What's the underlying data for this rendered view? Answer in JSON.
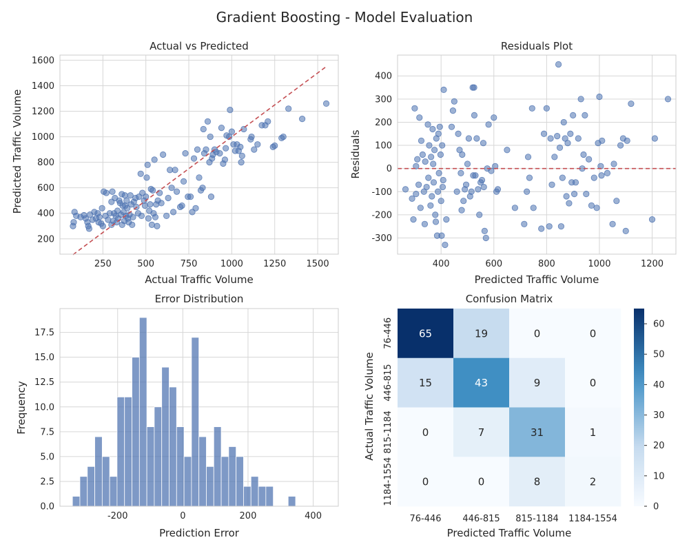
{
  "suptitle": "Gradient Boosting - Model Evaluation",
  "colors": {
    "point": "#4c72b0",
    "ref_line": "#c44e52",
    "bar": "#4c72b0",
    "heat_low": "#f7fbff",
    "heat_high": "#08306b"
  },
  "chart_data": [
    {
      "type": "scatter",
      "title": "Actual vs Predicted",
      "xlabel": "Actual Traffic Volume",
      "ylabel": "Predicted Traffic Volume",
      "xlim": [
        0,
        1620
      ],
      "ylim": [
        80,
        1640
      ],
      "xticks": [
        250,
        500,
        750,
        1000,
        1250,
        1500
      ],
      "yticks": [
        200,
        400,
        600,
        800,
        1000,
        1200,
        1400,
        1600
      ],
      "grid": true,
      "reference_line": {
        "style": "dashed",
        "from": [
          76,
          76
        ],
        "to": [
          1554,
          1554
        ]
      },
      "points": [
        [
          76,
          300
        ],
        [
          80,
          330
        ],
        [
          85,
          410
        ],
        [
          95,
          380
        ],
        [
          120,
          370
        ],
        [
          140,
          385
        ],
        [
          150,
          360
        ],
        [
          160,
          330
        ],
        [
          165,
          300
        ],
        [
          170,
          280
        ],
        [
          175,
          390
        ],
        [
          190,
          350
        ],
        [
          200,
          410
        ],
        [
          210,
          360
        ],
        [
          220,
          400
        ],
        [
          225,
          330
        ],
        [
          230,
          370
        ],
        [
          240,
          320
        ],
        [
          245,
          440
        ],
        [
          250,
          300
        ],
        [
          255,
          570
        ],
        [
          265,
          380
        ],
        [
          270,
          560
        ],
        [
          280,
          350
        ],
        [
          290,
          400
        ],
        [
          300,
          310
        ],
        [
          300,
          490
        ],
        [
          305,
          570
        ],
        [
          310,
          340
        ],
        [
          315,
          400
        ],
        [
          320,
          520
        ],
        [
          325,
          380
        ],
        [
          330,
          330
        ],
        [
          335,
          420
        ],
        [
          340,
          360
        ],
        [
          345,
          500
        ],
        [
          350,
          480
        ],
        [
          355,
          390
        ],
        [
          360,
          550
        ],
        [
          362,
          310
        ],
        [
          365,
          460
        ],
        [
          370,
          410
        ],
        [
          375,
          340
        ],
        [
          378,
          540
        ],
        [
          380,
          460
        ],
        [
          385,
          380
        ],
        [
          388,
          500
        ],
        [
          392,
          440
        ],
        [
          395,
          360
        ],
        [
          400,
          330
        ],
        [
          405,
          390
        ],
        [
          410,
          540
        ],
        [
          415,
          470
        ],
        [
          420,
          310
        ],
        [
          425,
          370
        ],
        [
          430,
          490
        ],
        [
          440,
          520
        ],
        [
          445,
          450
        ],
        [
          455,
          400
        ],
        [
          460,
          530
        ],
        [
          470,
          710
        ],
        [
          475,
          380
        ],
        [
          480,
          560
        ],
        [
          490,
          500
        ],
        [
          495,
          460
        ],
        [
          500,
          530
        ],
        [
          505,
          680
        ],
        [
          510,
          780
        ],
        [
          515,
          360
        ],
        [
          520,
          420
        ],
        [
          525,
          470
        ],
        [
          530,
          590
        ],
        [
          535,
          310
        ],
        [
          540,
          580
        ],
        [
          545,
          400
        ],
        [
          550,
          820
        ],
        [
          555,
          370
        ],
        [
          560,
          470
        ],
        [
          565,
          300
        ],
        [
          570,
          500
        ],
        [
          580,
          560
        ],
        [
          590,
          480
        ],
        [
          600,
          860
        ],
        [
          620,
          380
        ],
        [
          630,
          520
        ],
        [
          640,
          740
        ],
        [
          650,
          600
        ],
        [
          660,
          410
        ],
        [
          670,
          740
        ],
        [
          680,
          570
        ],
        [
          700,
          450
        ],
        [
          710,
          460
        ],
        [
          720,
          650
        ],
        [
          730,
          870
        ],
        [
          745,
          530
        ],
        [
          760,
          530
        ],
        [
          770,
          410
        ],
        [
          780,
          830
        ],
        [
          790,
          440
        ],
        [
          800,
          900
        ],
        [
          810,
          680
        ],
        [
          820,
          580
        ],
        [
          830,
          600
        ],
        [
          835,
          1060
        ],
        [
          840,
          870
        ],
        [
          850,
          900
        ],
        [
          860,
          1120
        ],
        [
          870,
          800
        ],
        [
          875,
          1000
        ],
        [
          880,
          530
        ],
        [
          885,
          830
        ],
        [
          890,
          860
        ],
        [
          900,
          900
        ],
        [
          910,
          880
        ],
        [
          930,
          870
        ],
        [
          940,
          1070
        ],
        [
          950,
          790
        ],
        [
          960,
          820
        ],
        [
          965,
          910
        ],
        [
          970,
          1010
        ],
        [
          985,
          1000
        ],
        [
          990,
          1210
        ],
        [
          1000,
          1040
        ],
        [
          1010,
          940
        ],
        [
          1020,
          890
        ],
        [
          1030,
          940
        ],
        [
          1040,
          890
        ],
        [
          1050,
          920
        ],
        [
          1055,
          800
        ],
        [
          1060,
          850
        ],
        [
          1070,
          1060
        ],
        [
          1110,
          980
        ],
        [
          1115,
          1000
        ],
        [
          1130,
          900
        ],
        [
          1150,
          940
        ],
        [
          1175,
          1090
        ],
        [
          1195,
          1090
        ],
        [
          1210,
          1120
        ],
        [
          1240,
          920
        ],
        [
          1250,
          930
        ],
        [
          1290,
          990
        ],
        [
          1300,
          1000
        ],
        [
          1330,
          1220
        ],
        [
          1410,
          1140
        ],
        [
          1550,
          1260
        ]
      ]
    },
    {
      "type": "scatter",
      "title": "Residuals Plot",
      "xlabel": "Predicted Traffic Volume",
      "ylabel": "Residuals",
      "xlim": [
        235,
        1290
      ],
      "ylim": [
        -370,
        490
      ],
      "xticks": [
        400,
        600,
        800,
        1000,
        1200
      ],
      "yticks": [
        -300,
        -200,
        -100,
        0,
        100,
        200,
        300,
        400
      ],
      "grid": true,
      "reference_line": {
        "style": "dashed",
        "y": 0
      },
      "points": [
        [
          265,
          -90
        ],
        [
          290,
          -130
        ],
        [
          295,
          -220
        ],
        [
          300,
          260
        ],
        [
          305,
          10
        ],
        [
          305,
          -110
        ],
        [
          310,
          40
        ],
        [
          315,
          -70
        ],
        [
          318,
          220
        ],
        [
          322,
          -170
        ],
        [
          325,
          120
        ],
        [
          330,
          60
        ],
        [
          335,
          -100
        ],
        [
          338,
          -240
        ],
        [
          340,
          30
        ],
        [
          345,
          -80
        ],
        [
          350,
          190
        ],
        [
          352,
          -40
        ],
        [
          355,
          100
        ],
        [
          360,
          -160
        ],
        [
          362,
          50
        ],
        [
          365,
          -120
        ],
        [
          368,
          170
        ],
        [
          370,
          20
        ],
        [
          372,
          -60
        ],
        [
          375,
          80
        ],
        [
          378,
          -200
        ],
        [
          380,
          -230
        ],
        [
          382,
          130
        ],
        [
          385,
          -290
        ],
        [
          388,
          -100
        ],
        [
          390,
          150
        ],
        [
          392,
          -20
        ],
        [
          395,
          180
        ],
        [
          398,
          60
        ],
        [
          400,
          -140
        ],
        [
          402,
          -290
        ],
        [
          404,
          100
        ],
        [
          406,
          -80
        ],
        [
          408,
          -50
        ],
        [
          410,
          340
        ],
        [
          415,
          -330
        ],
        [
          420,
          -220
        ],
        [
          440,
          180
        ],
        [
          445,
          250
        ],
        [
          450,
          290
        ],
        [
          460,
          -100
        ],
        [
          465,
          150
        ],
        [
          470,
          80
        ],
        [
          475,
          -20
        ],
        [
          478,
          -180
        ],
        [
          480,
          60
        ],
        [
          485,
          -140
        ],
        [
          490,
          -90
        ],
        [
          495,
          -70
        ],
        [
          500,
          20
        ],
        [
          505,
          130
        ],
        [
          510,
          -120
        ],
        [
          515,
          -100
        ],
        [
          520,
          350
        ],
        [
          522,
          -30
        ],
        [
          525,
          350
        ],
        [
          526,
          230
        ],
        [
          530,
          -30
        ],
        [
          535,
          130
        ],
        [
          540,
          -90
        ],
        [
          545,
          -200
        ],
        [
          550,
          -60
        ],
        [
          555,
          -50
        ],
        [
          560,
          110
        ],
        [
          562,
          -80
        ],
        [
          565,
          -270
        ],
        [
          570,
          -300
        ],
        [
          575,
          0
        ],
        [
          580,
          190
        ],
        [
          590,
          -10
        ],
        [
          600,
          220
        ],
        [
          605,
          10
        ],
        [
          610,
          -100
        ],
        [
          615,
          -90
        ],
        [
          650,
          80
        ],
        [
          680,
          -170
        ],
        [
          715,
          -240
        ],
        [
          725,
          -100
        ],
        [
          730,
          50
        ],
        [
          735,
          -40
        ],
        [
          745,
          260
        ],
        [
          750,
          -170
        ],
        [
          780,
          -260
        ],
        [
          790,
          150
        ],
        [
          800,
          260
        ],
        [
          810,
          -250
        ],
        [
          815,
          130
        ],
        [
          820,
          -70
        ],
        [
          830,
          50
        ],
        [
          840,
          140
        ],
        [
          845,
          450
        ],
        [
          850,
          90
        ],
        [
          855,
          -250
        ],
        [
          860,
          -40
        ],
        [
          865,
          200
        ],
        [
          870,
          130
        ],
        [
          875,
          -120
        ],
        [
          880,
          110
        ],
        [
          885,
          -150
        ],
        [
          890,
          150
        ],
        [
          895,
          -60
        ],
        [
          900,
          230
        ],
        [
          905,
          -110
        ],
        [
          910,
          -60
        ],
        [
          920,
          130
        ],
        [
          930,
          300
        ],
        [
          935,
          0
        ],
        [
          940,
          60
        ],
        [
          945,
          230
        ],
        [
          950,
          -110
        ],
        [
          960,
          40
        ],
        [
          970,
          -160
        ],
        [
          980,
          -40
        ],
        [
          990,
          -170
        ],
        [
          995,
          110
        ],
        [
          1000,
          310
        ],
        [
          1005,
          10
        ],
        [
          1008,
          -30
        ],
        [
          1010,
          120
        ],
        [
          1030,
          -20
        ],
        [
          1050,
          -240
        ],
        [
          1055,
          20
        ],
        [
          1065,
          -140
        ],
        [
          1080,
          100
        ],
        [
          1090,
          130
        ],
        [
          1100,
          -270
        ],
        [
          1105,
          120
        ],
        [
          1120,
          280
        ],
        [
          1200,
          -220
        ],
        [
          1210,
          130
        ],
        [
          1260,
          300
        ]
      ]
    },
    {
      "type": "bar",
      "subtype": "histogram",
      "title": "Error Distribution",
      "xlabel": "Prediction Error",
      "ylabel": "Frequency",
      "xlim": [
        -377,
        477
      ],
      "ylim": [
        0,
        19.9
      ],
      "xticks": [
        -200,
        0,
        200,
        400
      ],
      "yticks": [
        0.0,
        2.5,
        5.0,
        7.5,
        10.0,
        12.5,
        15.0,
        17.5
      ],
      "grid": true,
      "bin_start": -338.6,
      "bin_width": 22.82,
      "values": [
        1,
        3,
        4,
        7,
        5,
        3,
        11,
        11,
        15,
        19,
        8,
        10,
        14,
        12,
        8,
        5,
        17,
        7,
        4,
        8,
        5,
        6,
        5,
        2,
        3,
        2,
        2,
        0,
        0,
        1
      ]
    },
    {
      "type": "heatmap",
      "title": "Confusion Matrix",
      "xlabel": "Predicted Traffic Volume",
      "ylabel": "Actual Traffic Volume",
      "row_labels": [
        "76-446",
        "446-815",
        "815-1184",
        "1184-1554"
      ],
      "col_labels": [
        "76-446",
        "446-815",
        "815-1184",
        "1184-1554"
      ],
      "values": [
        [
          65,
          19,
          0,
          0
        ],
        [
          15,
          43,
          9,
          0
        ],
        [
          0,
          7,
          31,
          1
        ],
        [
          0,
          0,
          8,
          2
        ]
      ],
      "colorbar_range": [
        0,
        65
      ],
      "colorbar_ticks": [
        0,
        10,
        20,
        30,
        40,
        50,
        60
      ]
    }
  ]
}
